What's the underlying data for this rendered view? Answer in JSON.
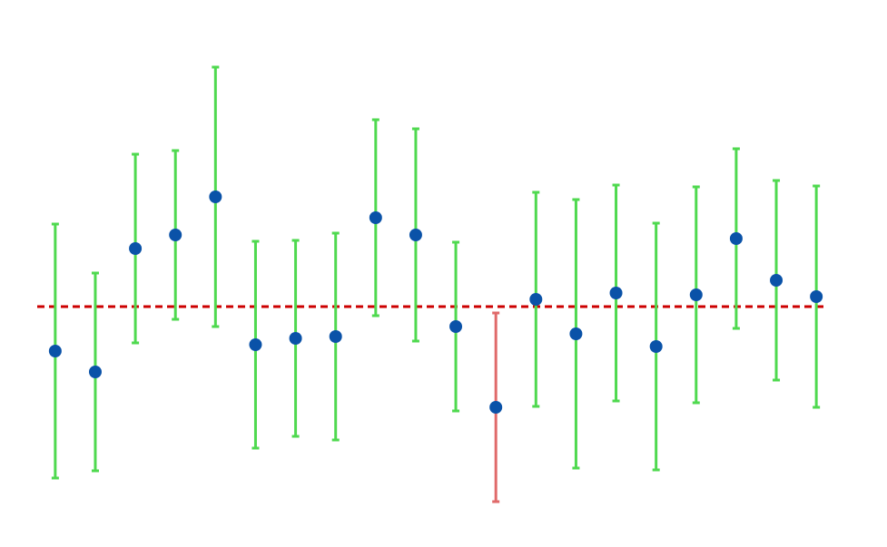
{
  "chart_data": {
    "type": "errorbar",
    "x": [
      1,
      2,
      3,
      4,
      5,
      6,
      7,
      8,
      9,
      10,
      11,
      12,
      13,
      14,
      15,
      16,
      17,
      18,
      19,
      20
    ],
    "values": [
      -0.49,
      -0.72,
      0.64,
      0.79,
      1.21,
      -0.42,
      -0.35,
      -0.33,
      0.98,
      0.79,
      -0.22,
      -1.11,
      0.08,
      -0.3,
      0.15,
      -0.44,
      0.13,
      0.75,
      0.29,
      0.11
    ],
    "errors": [
      1.4,
      1.09,
      1.04,
      0.93,
      1.43,
      1.14,
      1.08,
      1.14,
      1.08,
      1.17,
      0.93,
      1.04,
      1.18,
      1.48,
      1.19,
      1.36,
      1.19,
      0.99,
      1.1,
      1.22
    ],
    "reference": 0,
    "color": "#0a52a8",
    "error_color": "#4fd94f",
    "outlier_error_color": "#e06a6a",
    "reference_color": "#cc0000",
    "xlim": [
      0.55,
      20.45
    ],
    "ylim": [
      -2.6,
      3.38
    ]
  }
}
